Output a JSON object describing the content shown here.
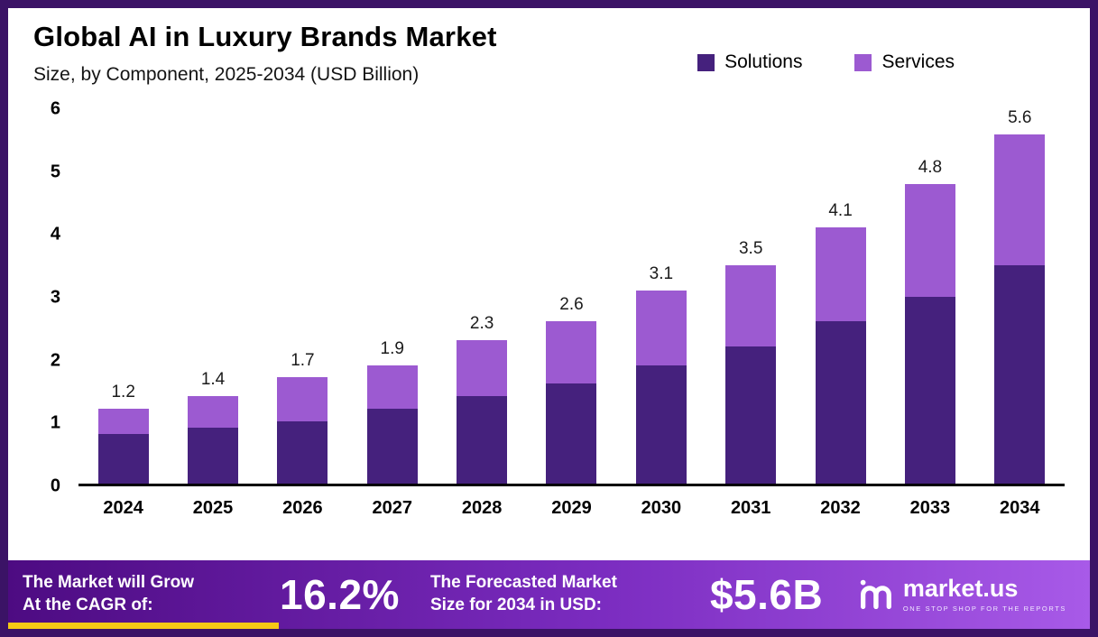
{
  "title": "Global AI in Luxury Brands Market",
  "subtitle": "Size, by Component, 2025-2034 (USD Billion)",
  "chart_data": {
    "type": "bar",
    "stacked": true,
    "title": "Global AI in Luxury Brands Market",
    "subtitle": "Size, by Component, 2025-2034 (USD Billion)",
    "unit": "USD Billion",
    "categories": [
      "2024",
      "2025",
      "2026",
      "2027",
      "2028",
      "2029",
      "2030",
      "2031",
      "2032",
      "2033",
      "2034"
    ],
    "series": [
      {
        "name": "Solutions",
        "color": "#45217d",
        "values": [
          0.8,
          0.9,
          1.0,
          1.2,
          1.4,
          1.6,
          1.9,
          2.2,
          2.6,
          3.0,
          3.5
        ]
      },
      {
        "name": "Services",
        "color": "#9c5ad1",
        "values": [
          0.4,
          0.5,
          0.7,
          0.7,
          0.9,
          1.0,
          1.2,
          1.3,
          1.5,
          1.8,
          2.1
        ]
      }
    ],
    "totals": [
      "1.2",
      "1.4",
      "1.7",
      "1.9",
      "2.3",
      "2.6",
      "3.1",
      "3.5",
      "4.1",
      "4.8",
      "5.6"
    ],
    "ylim": [
      0,
      6
    ],
    "yticks": [
      0,
      1,
      2,
      3,
      4,
      5,
      6
    ],
    "legend_position": "top-right",
    "grid": false
  },
  "footer": {
    "cagr_label": "The Market will Grow\nAt the CAGR of:",
    "cagr_value": "16.2%",
    "forecast_label": "The Forecasted Market\nSize for 2034 in USD:",
    "forecast_value": "$5.6B",
    "brand": "market.us",
    "brand_tagline": "ONE STOP SHOP FOR THE REPORTS"
  },
  "colors": {
    "frame_border": "#3b1366",
    "solutions": "#45217d",
    "services": "#9c5ad1",
    "footer_gradient_start": "#4d0b82",
    "footer_gradient_end": "#a85ae8",
    "accent_yellow": "#f6c915"
  }
}
